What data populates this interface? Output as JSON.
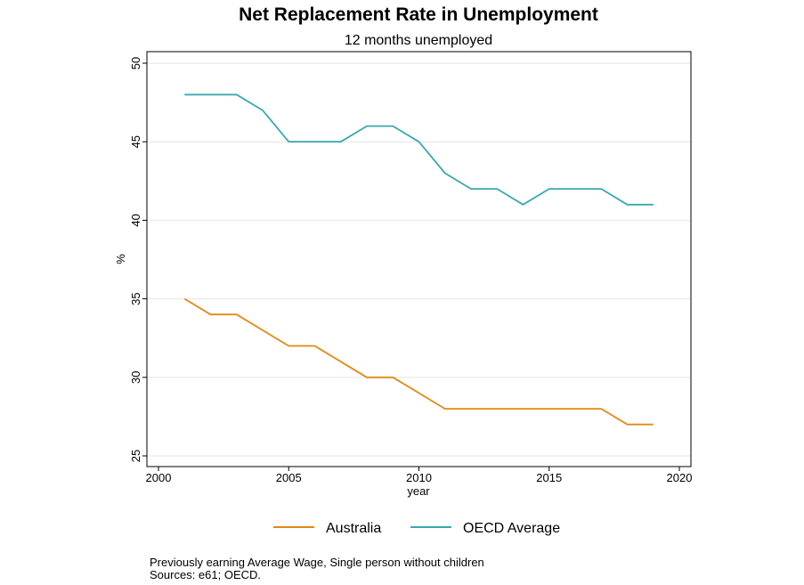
{
  "colors": {
    "australia": "#E08A14",
    "oecd": "#3AA9AE",
    "grid": "#e6e6e6",
    "frame": "#000000"
  },
  "chart_data": {
    "type": "line",
    "title": "Net Replacement Rate in Unemployment",
    "subtitle": "12 months unemployed",
    "xlabel": "year",
    "ylabel": "%",
    "xlim": [
      2000,
      2020
    ],
    "ylim": [
      25,
      50
    ],
    "xticks": [
      "2000",
      "2005",
      "2010",
      "2015",
      "2020"
    ],
    "yticks": [
      "25",
      "30",
      "35",
      "40",
      "45",
      "50"
    ],
    "grid": true,
    "legend_position": "bottom",
    "x": [
      2001,
      2002,
      2003,
      2004,
      2005,
      2006,
      2007,
      2008,
      2009,
      2010,
      2011,
      2012,
      2013,
      2014,
      2015,
      2016,
      2017,
      2018,
      2019
    ],
    "series": [
      {
        "name": "Australia",
        "color": "#E08A14",
        "values": [
          35,
          34,
          34,
          33,
          32,
          32,
          31,
          30,
          30,
          29,
          28,
          28,
          28,
          28,
          28,
          28,
          28,
          27,
          27
        ]
      },
      {
        "name": "OECD Average",
        "color": "#3AA9AE",
        "values": [
          48,
          48,
          48,
          47,
          45,
          45,
          45,
          46,
          46,
          45,
          43,
          42,
          42,
          41,
          42,
          42,
          42,
          41,
          41
        ]
      }
    ]
  },
  "notes": {
    "line1": "Previously earning Average Wage, Single person without children",
    "line2": "Sources: e61; OECD."
  }
}
